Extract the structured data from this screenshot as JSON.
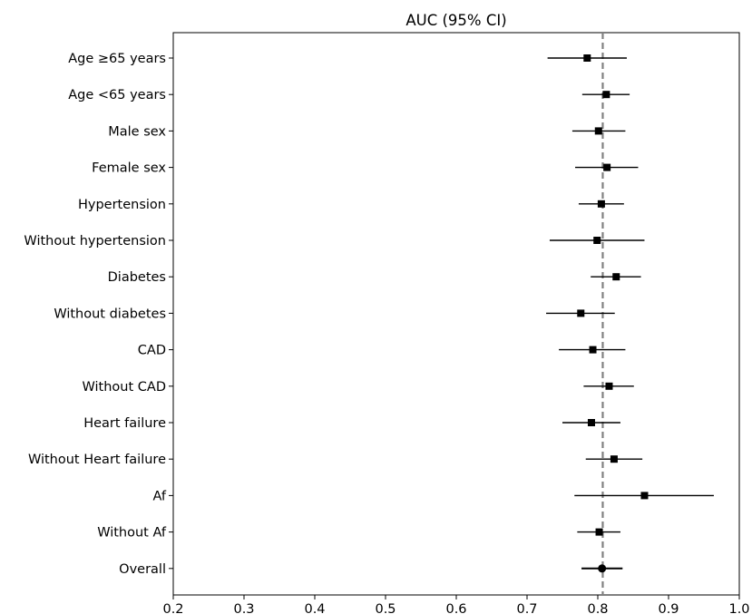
{
  "chart_data": {
    "type": "forest",
    "title": "AUC (95% CI)",
    "xlabel": "",
    "ylabel": "",
    "xlim": [
      0.2,
      1.0
    ],
    "x_ticks": [
      "0.2",
      "0.3",
      "0.4",
      "0.5",
      "0.6",
      "0.7",
      "0.8",
      "0.9",
      "1.0"
    ],
    "x_tick_values": [
      0.2,
      0.3,
      0.4,
      0.5,
      0.6,
      0.7,
      0.8,
      0.9,
      1.0
    ],
    "reference_line": 0.807,
    "grid": false,
    "colors": {
      "marker": "#000000",
      "reference_line": "#808080",
      "axis": "#000000"
    },
    "rows": [
      {
        "label": "Age ≥65 years",
        "auc": 0.785,
        "ci_low": 0.729,
        "ci_high": 0.841,
        "marker": "square"
      },
      {
        "label": "Age <65 years",
        "auc": 0.812,
        "ci_low": 0.778,
        "ci_high": 0.845,
        "marker": "square"
      },
      {
        "label": "Male sex",
        "auc": 0.801,
        "ci_low": 0.764,
        "ci_high": 0.839,
        "marker": "square"
      },
      {
        "label": "Female sex",
        "auc": 0.813,
        "ci_low": 0.768,
        "ci_high": 0.857,
        "marker": "square"
      },
      {
        "label": "Hypertension",
        "auc": 0.805,
        "ci_low": 0.773,
        "ci_high": 0.837,
        "marker": "square"
      },
      {
        "label": "Without hypertension",
        "auc": 0.799,
        "ci_low": 0.732,
        "ci_high": 0.866,
        "marker": "square"
      },
      {
        "label": "Diabetes",
        "auc": 0.826,
        "ci_low": 0.79,
        "ci_high": 0.861,
        "marker": "square"
      },
      {
        "label": "Without diabetes",
        "auc": 0.776,
        "ci_low": 0.727,
        "ci_high": 0.824,
        "marker": "square"
      },
      {
        "label": "CAD",
        "auc": 0.793,
        "ci_low": 0.745,
        "ci_high": 0.839,
        "marker": "square"
      },
      {
        "label": "Without CAD",
        "auc": 0.816,
        "ci_low": 0.78,
        "ci_high": 0.851,
        "marker": "square"
      },
      {
        "label": "Heart failure",
        "auc": 0.791,
        "ci_low": 0.75,
        "ci_high": 0.832,
        "marker": "square"
      },
      {
        "label": "Without Heart failure",
        "auc": 0.823,
        "ci_low": 0.783,
        "ci_high": 0.863,
        "marker": "square"
      },
      {
        "label": "Af",
        "auc": 0.866,
        "ci_low": 0.767,
        "ci_high": 0.964,
        "marker": "square"
      },
      {
        "label": "Without Af",
        "auc": 0.802,
        "ci_low": 0.771,
        "ci_high": 0.832,
        "marker": "square"
      },
      {
        "label": "Overall",
        "auc": 0.806,
        "ci_low": 0.777,
        "ci_high": 0.835,
        "marker": "circle"
      }
    ]
  }
}
